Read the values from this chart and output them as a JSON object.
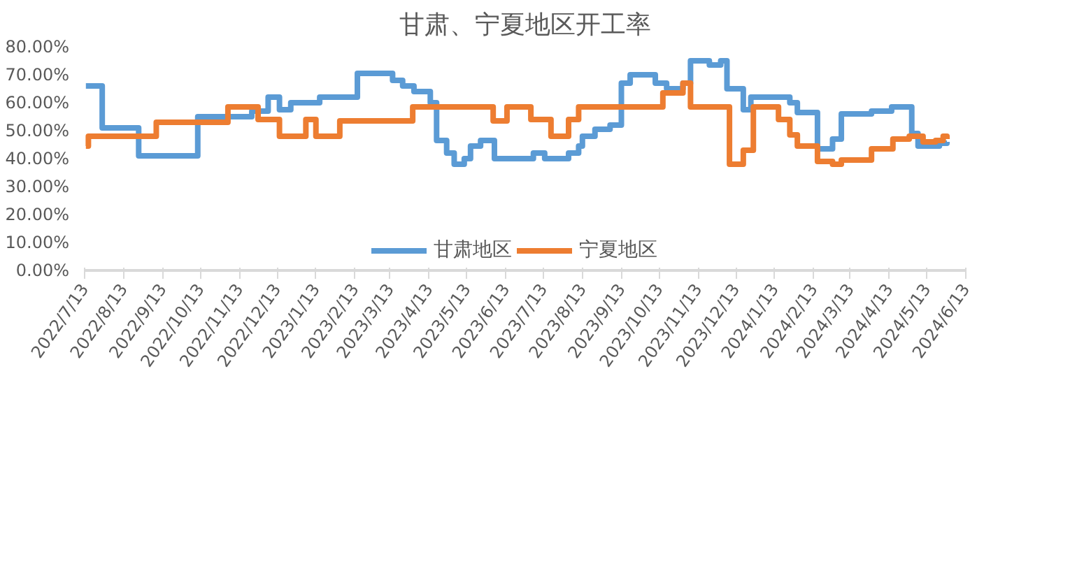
{
  "chart_data": {
    "type": "step",
    "title": "甘肃、宁夏地区开工率",
    "xlim": [
      "2022-07-13",
      "2024-06-13"
    ],
    "xticks": [
      {
        "value": "2022-07-13",
        "label": "2022/7/13"
      },
      {
        "value": "2022-08-13",
        "label": "2022/8/13"
      },
      {
        "value": "2022-09-13",
        "label": "2022/9/13"
      },
      {
        "value": "2022-10-13",
        "label": "2022/10/13"
      },
      {
        "value": "2022-11-13",
        "label": "2022/11/13"
      },
      {
        "value": "2022-12-13",
        "label": "2022/12/13"
      },
      {
        "value": "2023-01-13",
        "label": "2023/1/13"
      },
      {
        "value": "2023-02-13",
        "label": "2023/2/13"
      },
      {
        "value": "2023-03-13",
        "label": "2023/3/13"
      },
      {
        "value": "2023-04-13",
        "label": "2023/4/13"
      },
      {
        "value": "2023-05-13",
        "label": "2023/5/13"
      },
      {
        "value": "2023-06-13",
        "label": "2023/6/13"
      },
      {
        "value": "2023-07-13",
        "label": "2023/7/13"
      },
      {
        "value": "2023-08-13",
        "label": "2023/8/13"
      },
      {
        "value": "2023-09-13",
        "label": "2023/9/13"
      },
      {
        "value": "2023-10-13",
        "label": "2023/10/13"
      },
      {
        "value": "2023-11-13",
        "label": "2023/11/13"
      },
      {
        "value": "2023-12-13",
        "label": "2023/12/13"
      },
      {
        "value": "2024-01-13",
        "label": "2024/1/13"
      },
      {
        "value": "2024-02-13",
        "label": "2024/2/13"
      },
      {
        "value": "2024-03-13",
        "label": "2024/3/13"
      },
      {
        "value": "2024-04-13",
        "label": "2024/4/13"
      },
      {
        "value": "2024-05-13",
        "label": "2024/5/13"
      },
      {
        "value": "2024-06-13",
        "label": "2024/6/13"
      }
    ],
    "ylim": [
      0,
      80
    ],
    "yticks": [
      {
        "value": 0,
        "label": "0.00%"
      },
      {
        "value": 10,
        "label": "10.00%"
      },
      {
        "value": 20,
        "label": "20.00%"
      },
      {
        "value": 30,
        "label": "30.00%"
      },
      {
        "value": 40,
        "label": "40.00%"
      },
      {
        "value": 50,
        "label": "50.00%"
      },
      {
        "value": 60,
        "label": "60.00%"
      },
      {
        "value": 70,
        "label": "70.00%"
      },
      {
        "value": 80,
        "label": "80.00%"
      }
    ],
    "grid": false,
    "legend": "bottom",
    "series": [
      {
        "name": "甘肃地区",
        "color": "#5b9bd5",
        "x": [
          "2022-07-14",
          "2022-07-27",
          "2022-08-25",
          "2022-10-11",
          "2022-11-23",
          "2022-12-06",
          "2022-12-15",
          "2022-12-24",
          "2023-01-16",
          "2023-02-15",
          "2023-03-15",
          "2023-03-23",
          "2023-04-01",
          "2023-04-14",
          "2023-04-19",
          "2023-04-27",
          "2023-05-03",
          "2023-05-11",
          "2023-05-16",
          "2023-05-24",
          "2023-06-04",
          "2023-07-05",
          "2023-07-14",
          "2023-08-02",
          "2023-08-10",
          "2023-08-13",
          "2023-08-23",
          "2023-09-04",
          "2023-09-13",
          "2023-09-20",
          "2023-10-10",
          "2023-10-19",
          "2023-11-01",
          "2023-11-07",
          "2023-11-22",
          "2023-12-01",
          "2023-12-06",
          "2023-12-19",
          "2023-12-25",
          "2024-01-25",
          "2024-01-31",
          "2024-02-16",
          "2024-02-28",
          "2024-03-06",
          "2024-03-30",
          "2024-04-15",
          "2024-05-01",
          "2024-05-06",
          "2024-05-23",
          "2024-05-29"
        ],
        "values": [
          66,
          51,
          41,
          55,
          57,
          62,
          57.5,
          60,
          62,
          70.5,
          68,
          66,
          64,
          60,
          46.5,
          42,
          38,
          40,
          44.5,
          46.5,
          40,
          42,
          40,
          42,
          44.5,
          48,
          50.5,
          52,
          67,
          70,
          67,
          65,
          67,
          75,
          73.5,
          75,
          65,
          57.5,
          62,
          60,
          56.5,
          43.5,
          47,
          56,
          57,
          58.5,
          49,
          44.5,
          45.5,
          46
        ]
      },
      {
        "name": "宁夏地区",
        "color": "#ed7d31",
        "x": [
          "2022-07-14",
          "2022-07-16",
          "2022-09-08",
          "2022-11-04",
          "2022-11-28",
          "2022-12-15",
          "2023-01-05",
          "2023-01-13",
          "2023-02-01",
          "2023-03-31",
          "2023-06-03",
          "2023-06-14",
          "2023-07-03",
          "2023-07-19",
          "2023-08-02",
          "2023-08-10",
          "2023-10-16",
          "2023-11-01",
          "2023-11-07",
          "2023-12-08",
          "2023-12-19",
          "2023-12-27",
          "2024-01-16",
          "2024-01-25",
          "2024-01-31",
          "2024-02-16",
          "2024-02-28",
          "2024-03-06",
          "2024-03-30",
          "2024-04-16",
          "2024-04-29",
          "2024-05-10",
          "2024-05-20",
          "2024-05-26",
          "2024-05-29"
        ],
        "values": [
          44.5,
          48,
          53,
          58.5,
          54,
          48,
          54,
          48,
          53.5,
          58.5,
          53.5,
          58.5,
          54,
          48,
          54,
          58.5,
          63.5,
          67,
          58.5,
          38,
          43,
          58.5,
          54,
          48.5,
          44.5,
          39,
          38,
          39.5,
          43.5,
          47,
          48,
          46,
          46.5,
          48,
          47
        ]
      }
    ]
  }
}
